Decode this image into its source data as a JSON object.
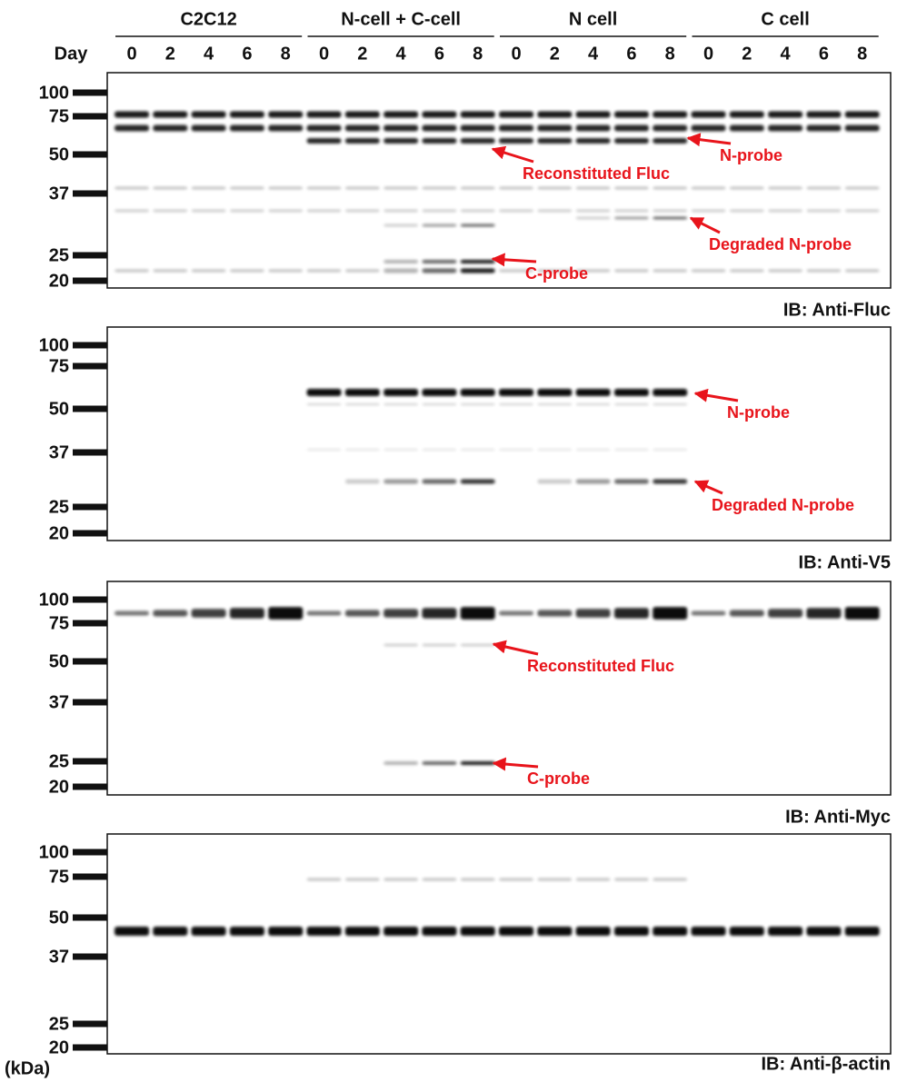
{
  "header": {
    "day_label": "Day",
    "groups": [
      {
        "name": "C2C12",
        "days": [
          "0",
          "2",
          "4",
          "6",
          "8"
        ]
      },
      {
        "name": "N-cell + C-cell",
        "days": [
          "0",
          "2",
          "4",
          "6",
          "8"
        ]
      },
      {
        "name": "N cell",
        "days": [
          "0",
          "2",
          "4",
          "6",
          "8"
        ]
      },
      {
        "name": "C cell",
        "days": [
          "0",
          "2",
          "4",
          "6",
          "8"
        ]
      }
    ]
  },
  "panels": [
    {
      "markers": [
        "100",
        "75",
        "50",
        "37",
        "25",
        "20"
      ],
      "annotations": [
        {
          "text": "Reconstituted Fluc"
        },
        {
          "text": "N-probe"
        },
        {
          "text": "Degraded N-probe"
        },
        {
          "text": "C-probe"
        }
      ],
      "ib": "IB: Anti-Fluc"
    },
    {
      "markers": [
        "100",
        "75",
        "50",
        "37",
        "25",
        "20"
      ],
      "annotations": [
        {
          "text": "N-probe"
        },
        {
          "text": "Degraded N-probe"
        }
      ],
      "ib": "IB: Anti-V5"
    },
    {
      "markers": [
        "100",
        "75",
        "50",
        "37",
        "25",
        "20"
      ],
      "annotations": [
        {
          "text": "Reconstituted Fluc"
        },
        {
          "text": "C-probe"
        }
      ],
      "ib": "IB: Anti-Myc"
    },
    {
      "markers": [
        "100",
        "75",
        "50",
        "37",
        "25",
        "20"
      ],
      "annotations": [],
      "ib": "IB: Anti-β-actin"
    }
  ],
  "unit": "(kDa)"
}
